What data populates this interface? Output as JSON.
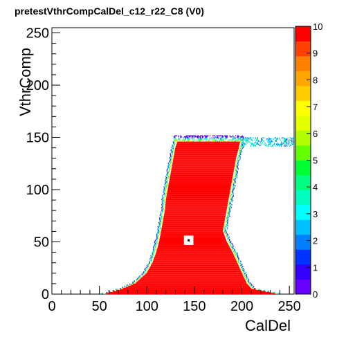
{
  "chart_data": {
    "type": "heatmap",
    "title": "pretestVthrCompCalDel_c12_r22_C8 (V0)",
    "xlabel": "CalDel",
    "ylabel": "VthrComp",
    "xlim": [
      0,
      255
    ],
    "ylim": [
      0,
      255
    ],
    "x_ticks": [
      "0",
      "50",
      "100",
      "150",
      "200",
      "250"
    ],
    "y_ticks": [
      "0",
      "50",
      "100",
      "150",
      "200",
      "250"
    ],
    "zlim": [
      0,
      10
    ],
    "z_ticks": [
      "0",
      "1",
      "2",
      "3",
      "4",
      "5",
      "6",
      "7",
      "8",
      "9",
      "10"
    ],
    "palette": [
      "#6600ff",
      "#3300ff",
      "#0033ff",
      "#0080ff",
      "#00bfff",
      "#00ffff",
      "#00ffbf",
      "#00ff80",
      "#00ff33",
      "#66ff00",
      "#b3ff00",
      "#e6ff00",
      "#ffff00",
      "#ffcc00",
      "#ffa500",
      "#ff7f00",
      "#ff4000",
      "#ff0000"
    ],
    "fill_value": 10,
    "region_rows": [
      {
        "y": 0,
        "x_start": 57,
        "x_end": 235
      },
      {
        "y": 5,
        "x_start": 75,
        "x_end": 210
      },
      {
        "y": 10,
        "x_start": 88,
        "x_end": 205
      },
      {
        "y": 20,
        "x_start": 100,
        "x_end": 200
      },
      {
        "y": 30,
        "x_start": 106,
        "x_end": 195
      },
      {
        "y": 40,
        "x_start": 110,
        "x_end": 190
      },
      {
        "y": 50,
        "x_start": 113,
        "x_end": 184
      },
      {
        "y": 60,
        "x_start": 115,
        "x_end": 180
      },
      {
        "y": 70,
        "x_start": 117,
        "x_end": 182
      },
      {
        "y": 80,
        "x_start": 119,
        "x_end": 184
      },
      {
        "y": 90,
        "x_start": 120,
        "x_end": 186
      },
      {
        "y": 100,
        "x_start": 122,
        "x_end": 188
      },
      {
        "y": 110,
        "x_start": 124,
        "x_end": 190
      },
      {
        "y": 120,
        "x_start": 126,
        "x_end": 192
      },
      {
        "y": 130,
        "x_start": 128,
        "x_end": 194
      },
      {
        "y": 140,
        "x_start": 130,
        "x_end": 197
      },
      {
        "y": 145,
        "x_start": 132,
        "x_end": 198
      }
    ],
    "plateau": {
      "x_start": 198,
      "x_end": 255,
      "y_start": 141,
      "y_end": 149
    },
    "hole": {
      "x_start": 139,
      "x_end": 149,
      "y_start": 47,
      "y_end": 56
    },
    "grid": false,
    "legend": "right"
  }
}
